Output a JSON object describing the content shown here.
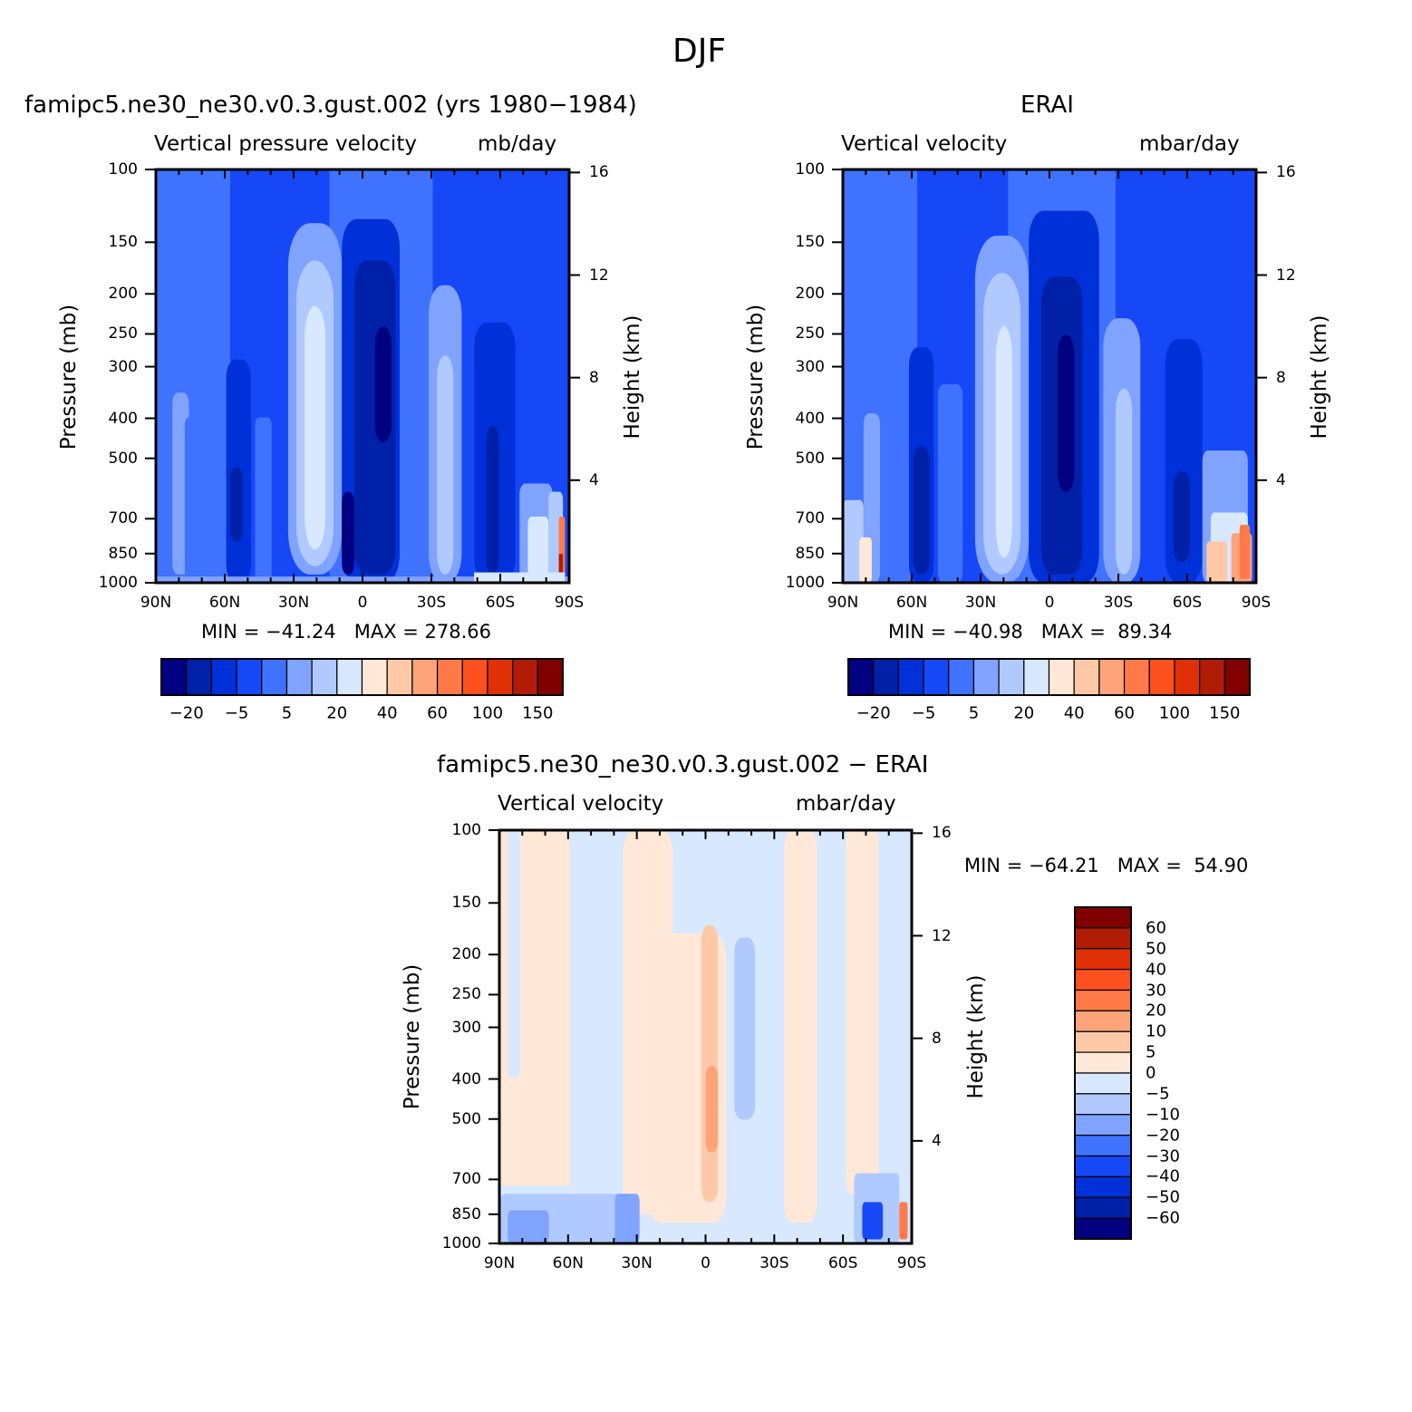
{
  "page": {
    "title": "DJF"
  },
  "colors": {
    "scale": [
      "#000080",
      "#0020a8",
      "#0030d8",
      "#1648f8",
      "#3f73ff",
      "#7fa3ff",
      "#b0caff",
      "#d8e8ff",
      "#ffe8d8",
      "#ffc9a8",
      "#ffa37a",
      "#ff7a48",
      "#ff5020",
      "#e03008",
      "#b01c06",
      "#800000"
    ]
  },
  "panels": {
    "model": {
      "title": "famipc5.ne30_ne30.v0.3.gust.002 (yrs 1980−1984)",
      "left_label": "Vertical pressure velocity",
      "right_label": "mb/day",
      "min_max": "MIN = −41.24   MAX = 278.66"
    },
    "obs": {
      "title": "ERAI",
      "left_label": "Vertical velocity",
      "right_label": "mbar/day",
      "min_max": "MIN = −40.98   MAX =  89.34"
    },
    "diff": {
      "title": "famipc5.ne30_ne30.v0.3.gust.002 − ERAI",
      "left_label": "Vertical velocity",
      "right_label": "mbar/day",
      "min_max": "MIN = −64.21   MAX =  54.90"
    }
  },
  "axes": {
    "ylabel": "Pressure (mb)",
    "y2label": "Height (km)",
    "x_ticks": [
      "90N",
      "60N",
      "30N",
      "0",
      "30S",
      "60S",
      "90S"
    ],
    "y_ticks": [
      "100",
      "150",
      "200",
      "250",
      "300",
      "400",
      "500",
      "700",
      "850",
      "1000"
    ],
    "y2_ticks": [
      "16",
      "12",
      "8",
      "4"
    ]
  },
  "colorbars": {
    "horizontal_labels": [
      "−20",
      "−5",
      "5",
      "20",
      "40",
      "60",
      "100",
      "150"
    ],
    "vertical_labels": [
      "60",
      "50",
      "40",
      "30",
      "20",
      "10",
      "5",
      "0",
      "−5",
      "−10",
      "−20",
      "−30",
      "−40",
      "−50",
      "−60"
    ]
  },
  "chart_data": [
    {
      "type": "heatmap",
      "title": "famipc5.ne30_ne30.v0.3.gust.002 (yrs 1980−1984)",
      "variable": "Vertical pressure velocity",
      "units": "mb/day",
      "xlabel": "",
      "ylabel": "Pressure (mb)",
      "y2label": "Height (km)",
      "x_range": [
        "90N",
        "90S"
      ],
      "y_range": [
        100,
        1000
      ],
      "y_scale": "log",
      "min": -41.24,
      "max": 278.66,
      "contour_levels": [
        -30,
        -20,
        -10,
        -5,
        0,
        5,
        10,
        20,
        30,
        40,
        50,
        60,
        80,
        100,
        120,
        150,
        200
      ]
    },
    {
      "type": "heatmap",
      "title": "ERAI",
      "variable": "Vertical velocity",
      "units": "mbar/day",
      "xlabel": "",
      "ylabel": "Pressure (mb)",
      "y2label": "Height (km)",
      "x_range": [
        "90N",
        "90S"
      ],
      "y_range": [
        100,
        1000
      ],
      "y_scale": "log",
      "min": -40.98,
      "max": 89.34,
      "contour_levels": [
        -30,
        -20,
        -10,
        -5,
        0,
        5,
        10,
        20,
        30,
        40,
        50,
        60,
        80,
        100,
        120,
        150,
        200
      ]
    },
    {
      "type": "heatmap",
      "title": "famipc5.ne30_ne30.v0.3.gust.002 − ERAI",
      "variable": "Vertical velocity",
      "units": "mbar/day",
      "xlabel": "",
      "ylabel": "Pressure (mb)",
      "y2label": "Height (km)",
      "x_range": [
        "90N",
        "90S"
      ],
      "y_range": [
        100,
        1000
      ],
      "y_scale": "log",
      "min": -64.21,
      "max": 54.9,
      "contour_levels": [
        -60,
        -50,
        -40,
        -30,
        -20,
        -10,
        -5,
        0,
        5,
        10,
        20,
        30,
        40,
        50,
        60
      ]
    }
  ]
}
